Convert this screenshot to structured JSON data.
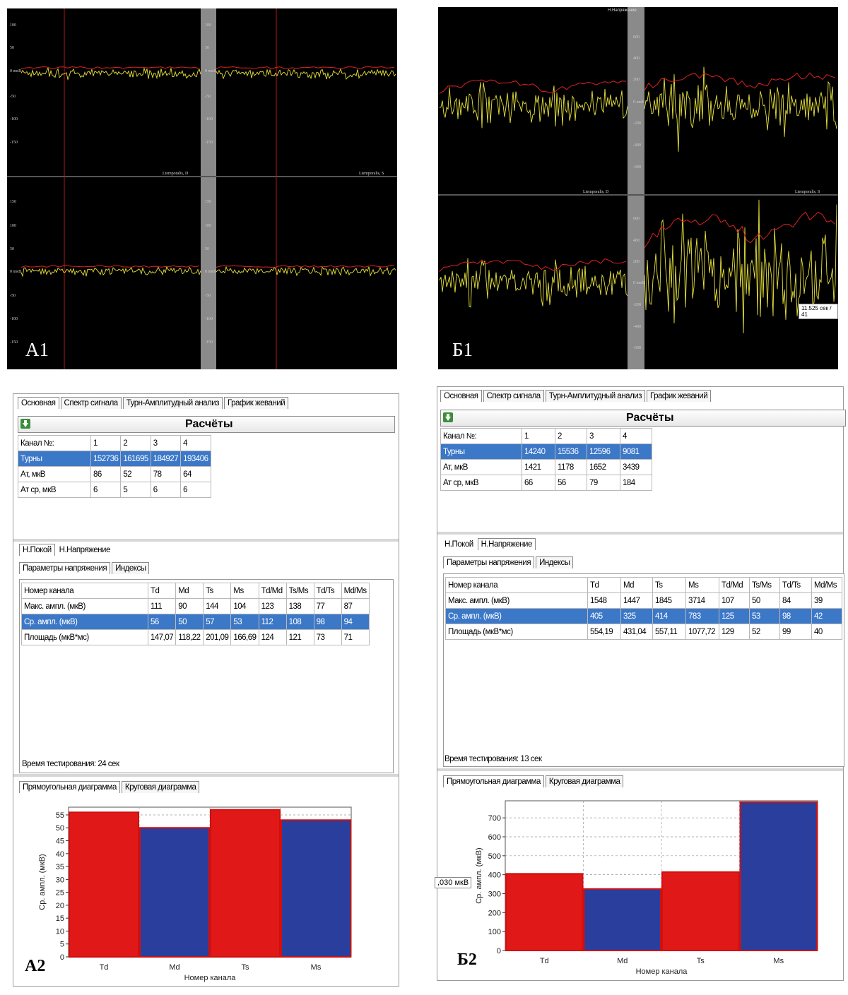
{
  "scope_a": {
    "label": "A1",
    "y_ticks_top": [
      "100",
      "50",
      "0 mкВ",
      "-50",
      "-100",
      "-150"
    ],
    "y_ticks_bottom": [
      "150",
      "100",
      "50",
      "0 mкВ",
      "-50",
      "-100",
      "-150"
    ],
    "titles": [
      "Ltemporalis, D",
      "Ltemporalis, S"
    ]
  },
  "scope_b": {
    "label": "Б1",
    "window_title": "Н.Напряжение",
    "y_ticks_top": [
      "600",
      "400",
      "200",
      "0 mкВ",
      "-200",
      "-400",
      "-600"
    ],
    "y_ticks_bottom": [
      "600",
      "400",
      "200",
      "0 mкВ",
      "-200",
      "-400",
      "-600"
    ],
    "titles": [
      "Ltemporalis, D",
      "Ltemporalis, S"
    ],
    "cursor_readout": "11.525 сек / 41"
  },
  "app_a": {
    "label": "A2",
    "tabs": [
      "Основная",
      "Спектр сигнала",
      "Турн-Амплитудный анализ",
      "График жеваний"
    ],
    "calc_title": "Расчёты",
    "calc_table": {
      "header": [
        "Канал №:",
        "1",
        "2",
        "3",
        "4"
      ],
      "rows": [
        {
          "name": "Турны",
          "values": [
            "152736",
            "161695",
            "184927",
            "193406"
          ],
          "selected": true
        },
        {
          "name": "Ат, мкВ",
          "values": [
            "86",
            "52",
            "78",
            "64"
          ]
        },
        {
          "name": "Ат ср, мкВ",
          "values": [
            "6",
            "5",
            "6",
            "6"
          ]
        }
      ]
    },
    "mode_tabs": [
      "Н.Покой",
      "Н.Напряжение"
    ],
    "sub_tabs": [
      "Параметры напряжения",
      "Индексы"
    ],
    "param_table": {
      "header": [
        "Номер канала",
        "Td",
        "Md",
        "Ts",
        "Ms",
        "Td/Md",
        "Ts/Ms",
        "Td/Ts",
        "Md/Ms"
      ],
      "rows": [
        {
          "name": "Макс. ампл. (мкВ)",
          "values": [
            "111",
            "90",
            "144",
            "104",
            "123",
            "138",
            "77",
            "87"
          ]
        },
        {
          "name": "Ср. ампл. (мкВ)",
          "values": [
            "56",
            "50",
            "57",
            "53",
            "112",
            "108",
            "98",
            "94"
          ],
          "selected": true
        },
        {
          "name": "Площадь (мкВ*мс)",
          "values": [
            "147,07",
            "118,22",
            "201,09",
            "166,69",
            "124",
            "121",
            "73",
            "71"
          ]
        }
      ]
    },
    "test_time": "Время тестирования: 24 сек",
    "chart_tabs": [
      "Прямоугольная диаграмма",
      "Круговая диаграмма"
    ]
  },
  "app_b": {
    "label": "Б2",
    "tabs": [
      "Основная",
      "Спектр сигнала",
      "Турн-Амплитудный анализ",
      "График жеваний"
    ],
    "calc_title": "Расчёты",
    "calc_table": {
      "header": [
        "Канал №:",
        "1",
        "2",
        "3",
        "4"
      ],
      "rows": [
        {
          "name": "Турны",
          "values": [
            "14240",
            "15536",
            "12596",
            "9081"
          ],
          "selected": true
        },
        {
          "name": "Ат, мкВ",
          "values": [
            "1421",
            "1178",
            "1652",
            "3439"
          ]
        },
        {
          "name": "Ат ср, мкВ",
          "values": [
            "66",
            "56",
            "79",
            "184"
          ]
        }
      ]
    },
    "mode_tabs": [
      "Н.Покой",
      "Н.Напряжение"
    ],
    "sub_tabs": [
      "Параметры напряжения",
      "Индексы"
    ],
    "param_table": {
      "header": [
        "Номер канала",
        "Td",
        "Md",
        "Ts",
        "Ms",
        "Td/Md",
        "Ts/Ms",
        "Td/Ts",
        "Md/Ms"
      ],
      "rows": [
        {
          "name": "Макс. ампл. (мкВ)",
          "values": [
            "1548",
            "1447",
            "1845",
            "3714",
            "107",
            "50",
            "84",
            "39"
          ]
        },
        {
          "name": "Ср. ампл. (мкВ)",
          "values": [
            "405",
            "325",
            "414",
            "783",
            "125",
            "53",
            "98",
            "42"
          ],
          "selected": true
        },
        {
          "name": "Площадь (мкВ*мс)",
          "values": [
            "554,19",
            "431,04",
            "557,11",
            "1077,72",
            "129",
            "52",
            "99",
            "40"
          ]
        }
      ]
    },
    "test_time": "Время тестирования: 13 сек",
    "chart_tabs": [
      "Прямоугольная диаграмма",
      "Круговая диаграмма"
    ],
    "tooltip": ",030 мкВ"
  },
  "chart_data": [
    {
      "type": "bar",
      "categories": [
        "Td",
        "Md",
        "Ts",
        "Ms"
      ],
      "values": [
        56,
        50,
        57,
        53
      ],
      "colors": [
        "#e01818",
        "#2a3e9e",
        "#e01818",
        "#2a3e9e"
      ],
      "xlabel": "Номер канала",
      "ylabel": "Ср. ампл. (мкВ)",
      "ylim": [
        0,
        58
      ],
      "yticks": [
        0,
        5,
        10,
        15,
        20,
        25,
        30,
        35,
        40,
        45,
        50,
        55
      ],
      "grid": true
    },
    {
      "type": "bar",
      "categories": [
        "Td",
        "Md",
        "Ts",
        "Ms"
      ],
      "values": [
        405,
        325,
        414,
        783
      ],
      "colors": [
        "#e01818",
        "#2a3e9e",
        "#e01818",
        "#2a3e9e"
      ],
      "xlabel": "Номер канала",
      "ylabel": "Ср. ампл. (мкВ)",
      "ylim": [
        0,
        790
      ],
      "yticks": [
        0,
        100,
        200,
        300,
        400,
        500,
        600,
        700
      ],
      "grid": true
    }
  ]
}
